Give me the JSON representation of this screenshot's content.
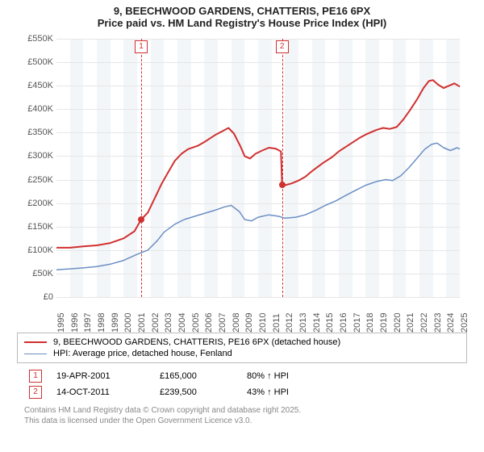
{
  "title": {
    "line1": "9, BEECHWOOD GARDENS, CHATTERIS, PE16 6PX",
    "line2": "Price paid vs. HM Land Registry's House Price Index (HPI)"
  },
  "chart": {
    "type": "line",
    "x_start_year": 1995,
    "x_end_year": 2025,
    "x_tick_years": [
      1995,
      1996,
      1997,
      1998,
      1999,
      2000,
      2001,
      2002,
      2003,
      2004,
      2005,
      2006,
      2007,
      2008,
      2009,
      2010,
      2011,
      2012,
      2013,
      2014,
      2015,
      2016,
      2017,
      2018,
      2019,
      2020,
      2021,
      2022,
      2023,
      2024,
      2025
    ],
    "ylim_min": 0,
    "ylim_max": 550,
    "y_ticks": [
      0,
      50,
      100,
      150,
      200,
      250,
      300,
      350,
      400,
      450,
      500,
      550
    ],
    "y_tick_labels": [
      "£0",
      "£50K",
      "£100K",
      "£150K",
      "£200K",
      "£250K",
      "£300K",
      "£350K",
      "£400K",
      "£450K",
      "£500K",
      "£550K"
    ],
    "grid_color": "#e6e6e6",
    "band_color": "#f3f6f9",
    "background_color": "#ffffff",
    "series": [
      {
        "id": "price_paid",
        "label": "9, BEECHWOOD GARDENS, CHATTERIS, PE16 6PX (detached house)",
        "color": "#d03030",
        "width": 2,
        "points": [
          [
            1995.0,
            105
          ],
          [
            1996.0,
            105
          ],
          [
            1997.0,
            108
          ],
          [
            1998.0,
            110
          ],
          [
            1999.0,
            115
          ],
          [
            2000.0,
            125
          ],
          [
            2000.8,
            140
          ],
          [
            2001.3,
            165
          ],
          [
            2001.8,
            180
          ],
          [
            2002.3,
            210
          ],
          [
            2002.8,
            240
          ],
          [
            2003.3,
            265
          ],
          [
            2003.8,
            290
          ],
          [
            2004.3,
            305
          ],
          [
            2004.8,
            315
          ],
          [
            2005.5,
            322
          ],
          [
            2006.0,
            330
          ],
          [
            2006.8,
            345
          ],
          [
            2007.4,
            354
          ],
          [
            2007.8,
            360
          ],
          [
            2008.2,
            348
          ],
          [
            2008.7,
            320
          ],
          [
            2009.0,
            300
          ],
          [
            2009.4,
            295
          ],
          [
            2009.8,
            305
          ],
          [
            2010.3,
            312
          ],
          [
            2010.8,
            318
          ],
          [
            2011.3,
            316
          ],
          [
            2011.7,
            310
          ],
          [
            2011.78,
            239.5
          ],
          [
            2012.0,
            238
          ],
          [
            2012.5,
            242
          ],
          [
            2013.0,
            248
          ],
          [
            2013.5,
            256
          ],
          [
            2014.0,
            268
          ],
          [
            2014.8,
            285
          ],
          [
            2015.5,
            298
          ],
          [
            2016.0,
            310
          ],
          [
            2016.8,
            325
          ],
          [
            2017.5,
            338
          ],
          [
            2018.0,
            346
          ],
          [
            2018.8,
            356
          ],
          [
            2019.3,
            360
          ],
          [
            2019.8,
            358
          ],
          [
            2020.3,
            362
          ],
          [
            2020.8,
            378
          ],
          [
            2021.3,
            398
          ],
          [
            2021.8,
            420
          ],
          [
            2022.3,
            445
          ],
          [
            2022.7,
            460
          ],
          [
            2023.0,
            462
          ],
          [
            2023.4,
            452
          ],
          [
            2023.8,
            445
          ],
          [
            2024.2,
            450
          ],
          [
            2024.6,
            455
          ],
          [
            2025.0,
            448
          ]
        ]
      },
      {
        "id": "hpi",
        "label": "HPI: Average price, detached house, Fenland",
        "color": "#6b8fc3",
        "width": 1.5,
        "points": [
          [
            1995.0,
            58
          ],
          [
            1996.0,
            60
          ],
          [
            1997.0,
            62
          ],
          [
            1998.0,
            65
          ],
          [
            1999.0,
            70
          ],
          [
            2000.0,
            78
          ],
          [
            2001.0,
            91
          ],
          [
            2001.8,
            100
          ],
          [
            2002.5,
            120
          ],
          [
            2003.0,
            138
          ],
          [
            2003.8,
            155
          ],
          [
            2004.5,
            165
          ],
          [
            2005.3,
            172
          ],
          [
            2006.0,
            178
          ],
          [
            2006.8,
            185
          ],
          [
            2007.5,
            192
          ],
          [
            2008.0,
            195
          ],
          [
            2008.6,
            182
          ],
          [
            2009.0,
            165
          ],
          [
            2009.5,
            162
          ],
          [
            2010.0,
            170
          ],
          [
            2010.8,
            175
          ],
          [
            2011.5,
            172
          ],
          [
            2012.0,
            168
          ],
          [
            2012.8,
            170
          ],
          [
            2013.5,
            175
          ],
          [
            2014.3,
            185
          ],
          [
            2015.0,
            195
          ],
          [
            2015.8,
            205
          ],
          [
            2016.5,
            216
          ],
          [
            2017.3,
            228
          ],
          [
            2018.0,
            238
          ],
          [
            2018.8,
            246
          ],
          [
            2019.5,
            250
          ],
          [
            2020.0,
            248
          ],
          [
            2020.6,
            258
          ],
          [
            2021.2,
            275
          ],
          [
            2021.8,
            295
          ],
          [
            2022.4,
            315
          ],
          [
            2022.9,
            325
          ],
          [
            2023.3,
            328
          ],
          [
            2023.8,
            318
          ],
          [
            2024.3,
            312
          ],
          [
            2024.8,
            318
          ],
          [
            2025.0,
            315
          ]
        ]
      }
    ],
    "sale_events": [
      {
        "n": "1",
        "year_frac": 2001.3,
        "price_k": 165.0,
        "date": "19-APR-2001",
        "price_label": "£165,000",
        "hpi_label": "80% ↑ HPI"
      },
      {
        "n": "2",
        "year_frac": 2011.78,
        "price_k": 239.5,
        "date": "14-OCT-2011",
        "price_label": "£239,500",
        "hpi_label": "43% ↑ HPI"
      }
    ]
  },
  "attribution": {
    "line1": "Contains HM Land Registry data © Crown copyright and database right 2025.",
    "line2": "This data is licensed under the Open Government Licence v3.0."
  }
}
